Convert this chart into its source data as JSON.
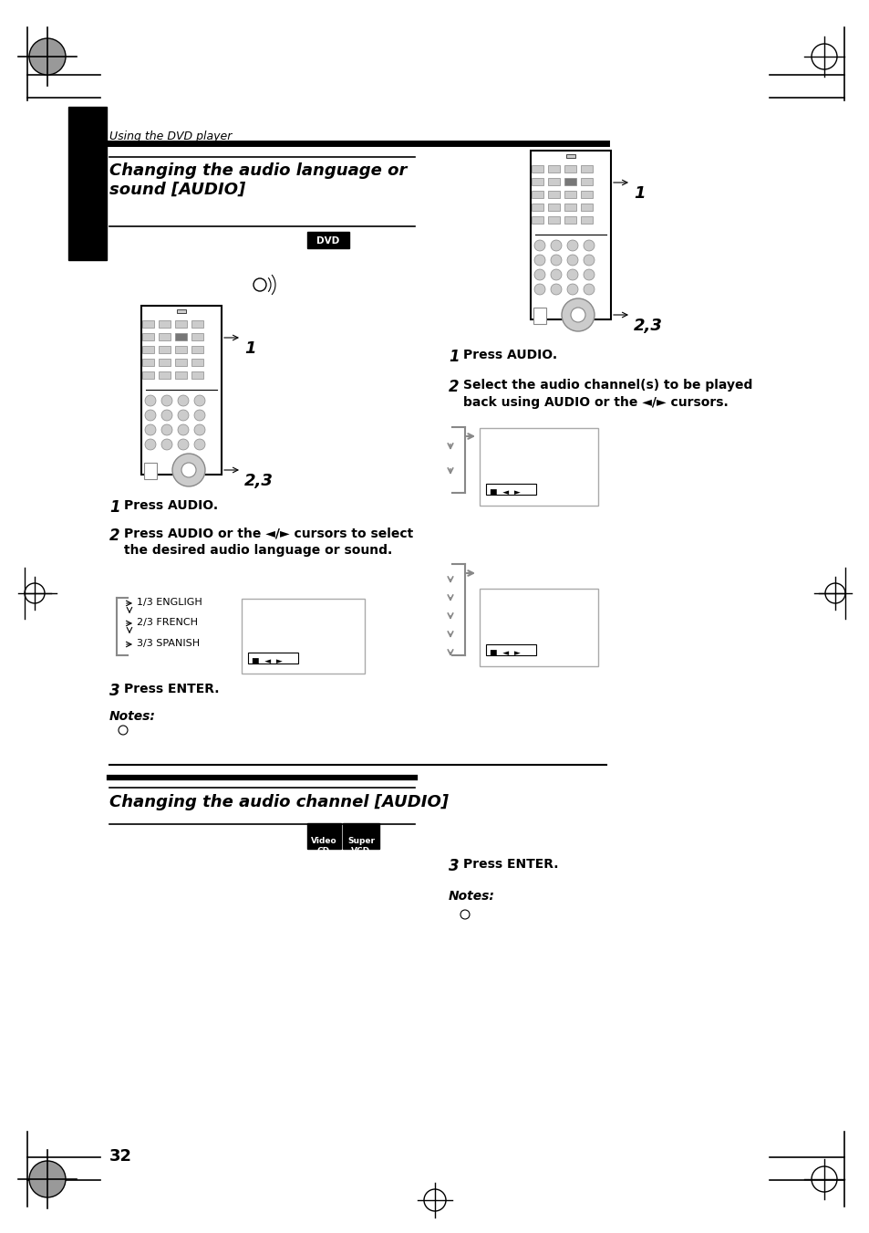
{
  "page_number": "32",
  "bg_color": "#ffffff",
  "section1_title": "Changing the audio language or\nsound [AUDIO]",
  "section2_title": "Changing the audio channel [AUDIO]",
  "header_text": "Using the DVD player",
  "step1_left": "Press AUDIO.",
  "step2_left_a": "Press AUDIO or the ◄/► cursors to select",
  "step2_left_b": "the desired audio language or sound.",
  "step3_left": "Press ENTER.",
  "notes_left": "Notes:",
  "step1_right": "Press AUDIO.",
  "step2_right_a": "Select the audio channel(s) to be played",
  "step2_right_b": "back using AUDIO or the ◄/► cursors.",
  "step3_right": "Press ENTER.",
  "notes_right": "Notes:",
  "lang_list": [
    "1/3 ENGLIGH",
    "2/3 FRENCH",
    "3/3 SPANISH"
  ],
  "black": "#000000",
  "gray": "#888888",
  "light_gray": "#aaaaaa",
  "dark_gray": "#555555"
}
